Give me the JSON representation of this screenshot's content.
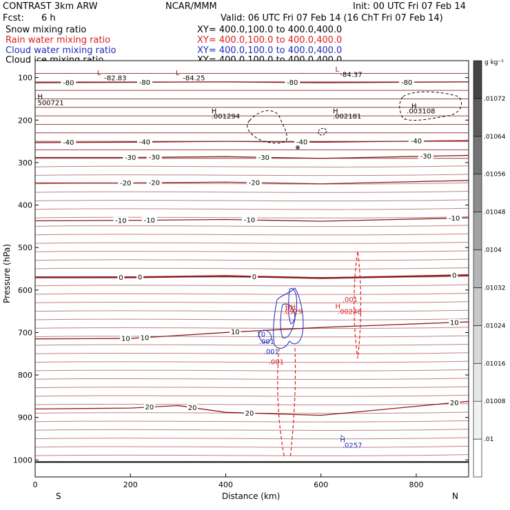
{
  "header": {
    "model": "CONTRAST  3km ARW",
    "org": "NCAR/MMM",
    "init": "Init: 00 UTC Fri 07 Feb 14",
    "fcst_label": "Fcst:",
    "fcst_value": "6 h",
    "valid": "Valid: 06 UTC Fri 07 Feb 14 (16 ChT Fri 07 Feb 14)"
  },
  "legend": [
    {
      "name": "Snow mixing ratio",
      "xy": "XY= 400.0,100.0 to 400.0,400.0",
      "color": "#000000"
    },
    {
      "name": "Rain water mixing ratio",
      "xy": "XY= 400.0,100.0 to 400.0,400.0",
      "color": "#d81e1e"
    },
    {
      "name": "Cloud water mixing ratio",
      "xy": "XY= 400.0,100.0 to 400.0,400.0",
      "color": "#1a2bb8"
    },
    {
      "name": "Cloud ice mixing ratio",
      "xy": "XY= 400.0,100.0 to 400.0,400.0",
      "color": "#000000"
    }
  ],
  "chart_data": {
    "type": "cross-section",
    "xlabel": "Distance (km)",
    "ylabel": "Pressure (hPa)",
    "xlim": [
      0,
      910
    ],
    "ylim": [
      1040,
      60
    ],
    "x_ticks": [
      0,
      200,
      400,
      600,
      800
    ],
    "y_ticks": [
      100,
      200,
      300,
      400,
      500,
      600,
      700,
      800,
      900,
      1000
    ],
    "x_end_labels": {
      "left": "S",
      "right": "N"
    },
    "colorbar": {
      "unit": "g kg⁻¹",
      "levels": [
        ".01",
        ".01008",
        ".01016",
        ".01024",
        ".01032",
        ".0104",
        ".01048",
        ".01056",
        ".01064",
        ".01072"
      ],
      "colors": [
        "#ffffff",
        "#f2f2f2",
        "#e6e6e6",
        "#d8d8d8",
        "#c8c8c8",
        "#b6b6b6",
        "#a2a2a2",
        "#8c8c8c",
        "#747474",
        "#5c5c5c",
        "#444444"
      ]
    },
    "temperature_contours": [
      {
        "label": "-80",
        "color": "#8b1a1a",
        "points": [
          [
            0,
            112
          ],
          [
            200,
            111
          ],
          [
            400,
            110
          ],
          [
            600,
            112
          ],
          [
            910,
            110
          ]
        ],
        "label_x": [
          70,
          230,
          540,
          780
        ]
      },
      {
        "label": "-40",
        "color": "#8b1a1a",
        "points": [
          [
            0,
            253
          ],
          [
            200,
            252
          ],
          [
            400,
            250
          ],
          [
            600,
            252
          ],
          [
            910,
            248
          ]
        ],
        "label_x": [
          70,
          230,
          560,
          800
        ]
      },
      {
        "label": "-30",
        "color": "#8b1a1a",
        "points": [
          [
            0,
            288
          ],
          [
            200,
            288
          ],
          [
            400,
            286
          ],
          [
            600,
            290
          ],
          [
            910,
            283
          ]
        ],
        "label_x": [
          200,
          250,
          480,
          820
        ]
      },
      {
        "label": "-20",
        "color": "#8b1a1a",
        "points": [
          [
            0,
            348
          ],
          [
            200,
            348
          ],
          [
            400,
            346
          ],
          [
            600,
            350
          ],
          [
            910,
            342
          ]
        ],
        "label_x": [
          190,
          250,
          460
        ]
      },
      {
        "label": "-10",
        "color": "#8b1a1a",
        "points": [
          [
            0,
            437
          ],
          [
            200,
            436
          ],
          [
            400,
            434
          ],
          [
            600,
            438
          ],
          [
            910,
            430
          ]
        ],
        "label_x": [
          180,
          240,
          450,
          880
        ]
      },
      {
        "label": "0",
        "color": "#8b1a1a",
        "bold": true,
        "points": [
          [
            0,
            570
          ],
          [
            200,
            570
          ],
          [
            400,
            567
          ],
          [
            600,
            572
          ],
          [
            910,
            565
          ]
        ],
        "label_x": [
          180,
          220,
          460,
          880
        ]
      },
      {
        "label": "10",
        "color": "#8b1a1a",
        "points": [
          [
            0,
            715
          ],
          [
            200,
            714
          ],
          [
            400,
            700
          ],
          [
            600,
            688
          ],
          [
            910,
            675
          ]
        ],
        "label_x": [
          190,
          230,
          420,
          880
        ]
      },
      {
        "label": "20",
        "color": "#8b1a1a",
        "points": [
          [
            0,
            880
          ],
          [
            200,
            878
          ],
          [
            300,
            872
          ],
          [
            400,
            888
          ],
          [
            600,
            895
          ],
          [
            910,
            862
          ]
        ],
        "label_x": [
          240,
          330,
          450,
          880
        ]
      }
    ],
    "annotations": [
      {
        "text": "L",
        "x": 130,
        "p": 94,
        "color": "#8b1a1a"
      },
      {
        "text": "-82.83",
        "x": 145,
        "p": 106,
        "color": "#000000"
      },
      {
        "text": "L",
        "x": 295,
        "p": 94,
        "color": "#8b1a1a"
      },
      {
        "text": "-84.25",
        "x": 310,
        "p": 106,
        "color": "#000000"
      },
      {
        "text": "L",
        "x": 630,
        "p": 86,
        "color": "#8b1a1a"
      },
      {
        "text": "-84.37",
        "x": 640,
        "p": 98,
        "color": "#000000"
      },
      {
        "text": "H",
        "x": 5,
        "p": 150,
        "color": "#000000"
      },
      {
        "text": "500721",
        "x": 5,
        "p": 165,
        "color": "#000000"
      },
      {
        "text": "H",
        "x": 370,
        "p": 184,
        "color": "#000000"
      },
      {
        "text": ".001294",
        "x": 370,
        "p": 196,
        "color": "#000000"
      },
      {
        "text": "H",
        "x": 625,
        "p": 184,
        "color": "#000000"
      },
      {
        "text": ".002181",
        "x": 625,
        "p": 196,
        "color": "#000000"
      },
      {
        "text": "H",
        "x": 790,
        "p": 172,
        "color": "#000000"
      },
      {
        "text": ".003108",
        "x": 780,
        "p": 184,
        "color": "#000000"
      },
      {
        "text": "HH",
        "x": 525,
        "p": 646,
        "color": "#d81e1e"
      },
      {
        "text": ".0929",
        "x": 520,
        "p": 656,
        "color": "#d81e1e"
      },
      {
        "text": ".001",
        "x": 645,
        "p": 628,
        "color": "#d81e1e"
      },
      {
        "text": "H",
        "x": 630,
        "p": 644,
        "color": "#d81e1e"
      },
      {
        "text": ".00248",
        "x": 635,
        "p": 656,
        "color": "#d81e1e"
      },
      {
        "text": ".001",
        "x": 490,
        "p": 775,
        "color": "#d81e1e"
      },
      {
        "text": ".001",
        "x": 470,
        "p": 727,
        "color": "#1a2bb8"
      },
      {
        "text": ".001",
        "x": 480,
        "p": 750,
        "color": "#1a2bb8"
      },
      {
        "text": "10",
        "x": 465,
        "p": 710,
        "color": "#1a2bb8"
      },
      {
        "text": "H",
        "x": 640,
        "p": 958,
        "color": "#1a2bb8"
      },
      {
        "text": ".0257",
        "x": 645,
        "p": 971,
        "color": "#1a2bb8"
      }
    ]
  }
}
